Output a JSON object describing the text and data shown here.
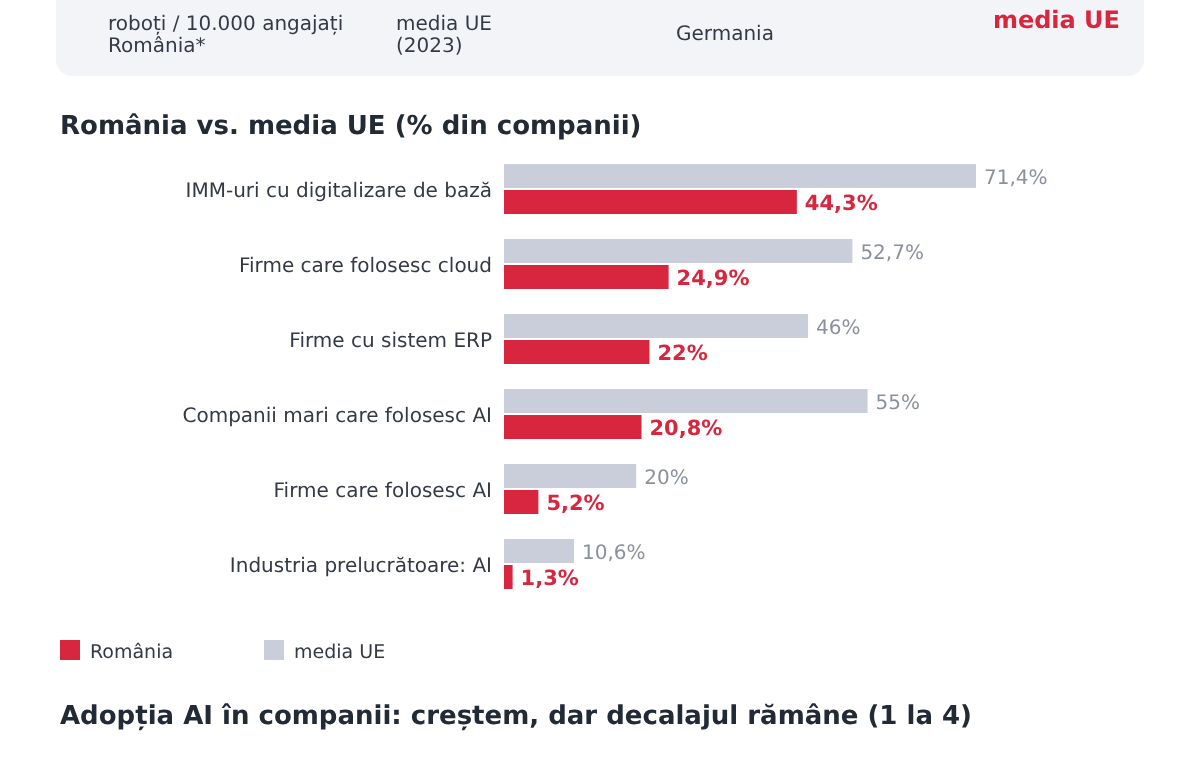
{
  "chart_data": {
    "type": "bar",
    "orientation": "horizontal",
    "title": "România vs. media UE (% din companii)",
    "categories": [
      "IMM-uri cu digitalizare de bază",
      "Firme care folosesc cloud",
      "Firme cu sistem ERP",
      "Companii mari care folosesc AI",
      "Firme care folosesc AI",
      "Industria prelucrătoare: AI"
    ],
    "series": [
      {
        "name": "media UE",
        "color": "#c9ceda",
        "values": [
          71.4,
          52.7,
          46,
          55,
          20,
          10.6
        ],
        "value_labels": [
          "71,4%",
          "52,7%",
          "46%",
          "55%",
          "20%",
          "10,6%"
        ]
      },
      {
        "name": "România",
        "color": "#d7263d",
        "values": [
          44.3,
          24.9,
          22,
          20.8,
          5.2,
          1.3
        ],
        "value_labels": [
          "44,3%",
          "24,9%",
          "22%",
          "20,8%",
          "5,2%",
          "1,3%"
        ]
      }
    ],
    "legend": "bottom left",
    "annotations": [
      "roboți / 10.000 angajați\nRomânia*",
      "media UE\n(2023)",
      "Germania",
      "media UE",
      "Adopția AI în companii: creștem, dar decalajul rămâne (1 la 4)"
    ]
  }
}
